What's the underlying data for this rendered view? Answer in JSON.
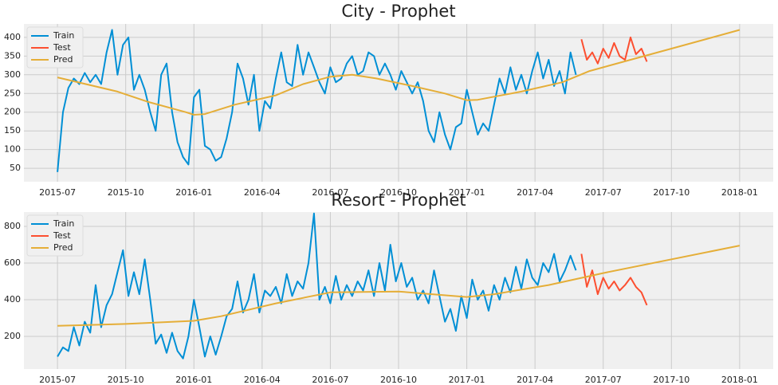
{
  "chart_data": [
    {
      "type": "line",
      "title": "City - Prophet",
      "grid": true,
      "legend": "upper left",
      "xlim": [
        2015.377,
        2018.123
      ],
      "ylim": [
        14,
        436
      ],
      "xticks": [
        {
          "value": 2015.5,
          "label": "2015-07"
        },
        {
          "value": 2015.75,
          "label": "2015-10"
        },
        {
          "value": 2016.0,
          "label": "2016-01"
        },
        {
          "value": 2016.25,
          "label": "2016-04"
        },
        {
          "value": 2016.5,
          "label": "2016-07"
        },
        {
          "value": 2016.75,
          "label": "2016-10"
        },
        {
          "value": 2017.0,
          "label": "2017-01"
        },
        {
          "value": 2017.25,
          "label": "2017-04"
        },
        {
          "value": 2017.5,
          "label": "2017-07"
        },
        {
          "value": 2017.75,
          "label": "2017-10"
        },
        {
          "value": 2018.0,
          "label": "2018-01"
        }
      ],
      "yticks": [
        50,
        100,
        150,
        200,
        250,
        300,
        350,
        400
      ],
      "series": [
        {
          "name": "Train",
          "color": "#008fd5",
          "x": [
            2015.5,
            2015.52,
            2015.54,
            2015.56,
            2015.58,
            2015.6,
            2015.62,
            2015.64,
            2015.66,
            2015.68,
            2015.7,
            2015.72,
            2015.74,
            2015.76,
            2015.78,
            2015.8,
            2015.82,
            2015.84,
            2015.86,
            2015.88,
            2015.9,
            2015.92,
            2015.94,
            2015.96,
            2015.98,
            2016,
            2016.02,
            2016.04,
            2016.06,
            2016.08,
            2016.1,
            2016.12,
            2016.14,
            2016.16,
            2016.18,
            2016.2,
            2016.22,
            2016.24,
            2016.26,
            2016.28,
            2016.3,
            2016.32,
            2016.34,
            2016.36,
            2016.38,
            2016.4,
            2016.42,
            2016.44,
            2016.46,
            2016.48,
            2016.5,
            2016.52,
            2016.54,
            2016.56,
            2016.58,
            2016.6,
            2016.62,
            2016.64,
            2016.66,
            2016.68,
            2016.7,
            2016.72,
            2016.74,
            2016.76,
            2016.78,
            2016.8,
            2016.82,
            2016.84,
            2016.86,
            2016.88,
            2016.9,
            2016.92,
            2016.94,
            2016.96,
            2016.98,
            2017,
            2017.02,
            2017.04,
            2017.06,
            2017.08,
            2017.1,
            2017.12,
            2017.14,
            2017.16,
            2017.18,
            2017.2,
            2017.22,
            2017.24,
            2017.26,
            2017.28,
            2017.3,
            2017.32,
            2017.34,
            2017.36,
            2017.38,
            2017.4
          ],
          "values": [
            40,
            200,
            265,
            290,
            275,
            305,
            280,
            300,
            275,
            360,
            420,
            300,
            380,
            400,
            260,
            300,
            260,
            200,
            150,
            300,
            330,
            200,
            120,
            80,
            60,
            240,
            260,
            110,
            100,
            70,
            80,
            130,
            200,
            330,
            290,
            220,
            300,
            150,
            230,
            210,
            290,
            360,
            280,
            270,
            380,
            300,
            360,
            320,
            280,
            250,
            320,
            280,
            290,
            330,
            350,
            300,
            310,
            360,
            350,
            300,
            330,
            300,
            260,
            310,
            280,
            250,
            280,
            230,
            150,
            120,
            200,
            140,
            100,
            160,
            170,
            260,
            200,
            140,
            170,
            150,
            220,
            290,
            250,
            320,
            260,
            300,
            250,
            310,
            360,
            290,
            340,
            270,
            310,
            250,
            360,
            300
          ]
        },
        {
          "name": "Test",
          "color": "#fc4f30",
          "x": [
            2017.42,
            2017.44,
            2017.46,
            2017.48,
            2017.5,
            2017.52,
            2017.54,
            2017.56,
            2017.58,
            2017.6,
            2017.62,
            2017.64,
            2017.66
          ],
          "values": [
            395,
            340,
            360,
            330,
            370,
            345,
            385,
            350,
            340,
            400,
            355,
            370,
            335
          ]
        },
        {
          "name": "Pred",
          "color": "#e5ae38",
          "x": [
            2015.5,
            2015.72,
            2015.83,
            2015.97,
            2016.0,
            2016.04,
            2016.15,
            2016.3,
            2016.4,
            2016.5,
            2016.58,
            2016.67,
            2016.8,
            2016.92,
            2017.0,
            2017.04,
            2017.2,
            2017.35,
            2017.45,
            2017.6,
            2017.75,
            2018.0
          ],
          "values": [
            293,
            255,
            228,
            200,
            193,
            195,
            220,
            245,
            275,
            295,
            300,
            290,
            270,
            250,
            232,
            233,
            255,
            280,
            310,
            340,
            370,
            420
          ]
        }
      ]
    },
    {
      "type": "line",
      "title": "Resort - Prophet",
      "grid": true,
      "legend": "upper left",
      "xlim": [
        2015.377,
        2018.123
      ],
      "ylim": [
        22,
        878
      ],
      "xticks": [
        {
          "value": 2015.5,
          "label": "2015-07"
        },
        {
          "value": 2015.75,
          "label": "2015-10"
        },
        {
          "value": 2016.0,
          "label": "2016-01"
        },
        {
          "value": 2016.25,
          "label": "2016-04"
        },
        {
          "value": 2016.5,
          "label": "2016-07"
        },
        {
          "value": 2016.75,
          "label": "2016-10"
        },
        {
          "value": 2017.0,
          "label": "2017-01"
        },
        {
          "value": 2017.25,
          "label": "2017-04"
        },
        {
          "value": 2017.5,
          "label": "2017-07"
        },
        {
          "value": 2017.75,
          "label": "2017-10"
        },
        {
          "value": 2018.0,
          "label": "2018-01"
        }
      ],
      "yticks": [
        200,
        400,
        600,
        800
      ],
      "series": [
        {
          "name": "Train",
          "color": "#008fd5",
          "x": [
            2015.5,
            2015.52,
            2015.54,
            2015.56,
            2015.58,
            2015.6,
            2015.62,
            2015.64,
            2015.66,
            2015.68,
            2015.7,
            2015.72,
            2015.74,
            2015.76,
            2015.78,
            2015.8,
            2015.82,
            2015.84,
            2015.86,
            2015.88,
            2015.9,
            2015.92,
            2015.94,
            2015.96,
            2015.98,
            2016,
            2016.02,
            2016.04,
            2016.06,
            2016.08,
            2016.1,
            2016.12,
            2016.14,
            2016.16,
            2016.18,
            2016.2,
            2016.22,
            2016.24,
            2016.26,
            2016.28,
            2016.3,
            2016.32,
            2016.34,
            2016.36,
            2016.38,
            2016.4,
            2016.42,
            2016.44,
            2016.46,
            2016.48,
            2016.5,
            2016.52,
            2016.54,
            2016.56,
            2016.58,
            2016.6,
            2016.62,
            2016.64,
            2016.66,
            2016.68,
            2016.7,
            2016.72,
            2016.74,
            2016.76,
            2016.78,
            2016.8,
            2016.82,
            2016.84,
            2016.86,
            2016.88,
            2016.9,
            2016.92,
            2016.94,
            2016.96,
            2016.98,
            2017,
            2017.02,
            2017.04,
            2017.06,
            2017.08,
            2017.1,
            2017.12,
            2017.14,
            2017.16,
            2017.18,
            2017.2,
            2017.22,
            2017.24,
            2017.26,
            2017.28,
            2017.3,
            2017.32,
            2017.34,
            2017.36,
            2017.38,
            2017.4
          ],
          "values": [
            90,
            140,
            120,
            250,
            150,
            280,
            220,
            480,
            250,
            370,
            430,
            550,
            670,
            420,
            550,
            430,
            620,
            400,
            160,
            210,
            110,
            220,
            120,
            80,
            200,
            400,
            250,
            90,
            200,
            100,
            200,
            310,
            350,
            500,
            330,
            400,
            540,
            330,
            450,
            420,
            470,
            380,
            540,
            420,
            500,
            460,
            600,
            870,
            400,
            470,
            380,
            530,
            400,
            480,
            420,
            500,
            450,
            560,
            420,
            600,
            450,
            700,
            500,
            600,
            470,
            520,
            400,
            450,
            380,
            560,
            420,
            280,
            350,
            230,
            420,
            300,
            510,
            400,
            450,
            340,
            480,
            400,
            520,
            440,
            580,
            460,
            620,
            520,
            480,
            600,
            550,
            650,
            500,
            560,
            640,
            560
          ]
        },
        {
          "name": "Test",
          "color": "#fc4f30",
          "x": [
            2017.42,
            2017.44,
            2017.46,
            2017.48,
            2017.5,
            2017.52,
            2017.54,
            2017.56,
            2017.58,
            2017.6,
            2017.62,
            2017.64,
            2017.66
          ],
          "values": [
            650,
            470,
            560,
            430,
            520,
            460,
            500,
            450,
            480,
            520,
            470,
            440,
            370
          ]
        },
        {
          "name": "Pred",
          "color": "#e5ae38",
          "x": [
            2015.5,
            2015.75,
            2016.0,
            2016.1,
            2016.3,
            2016.5,
            2016.75,
            2017.0,
            2017.1,
            2017.3,
            2017.5,
            2018.0
          ],
          "values": [
            258,
            268,
            285,
            310,
            380,
            440,
            445,
            415,
            430,
            480,
            545,
            695
          ]
        }
      ]
    }
  ]
}
